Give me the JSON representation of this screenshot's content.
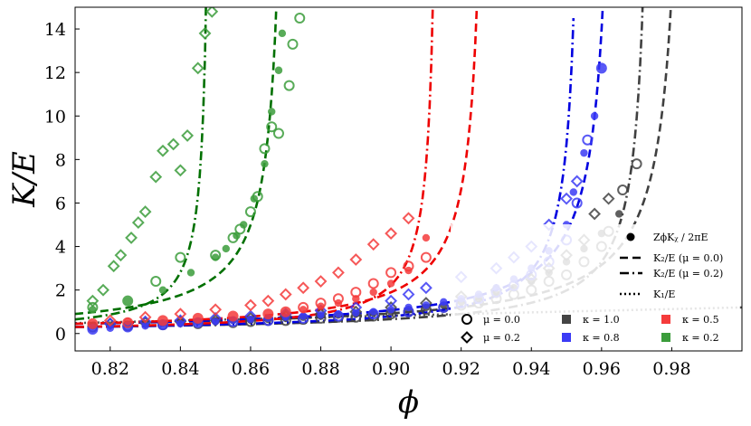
{
  "chart_data": {
    "type": "scatter",
    "xlabel": "ϕ",
    "ylabel": "K/E",
    "xlim": [
      0.81,
      1.0
    ],
    "ylim": [
      -0.8,
      15
    ],
    "x_ticks": [
      "0.82",
      "0.84",
      "0.86",
      "0.88",
      "0.90",
      "0.92",
      "0.94",
      "0.96",
      "0.98"
    ],
    "y_ticks": [
      "0",
      "2",
      "4",
      "6",
      "8",
      "10",
      "12",
      "14"
    ],
    "grid": false,
    "legend": {
      "placement": "bottom-right",
      "lines": [
        {
          "label": "ZϕKᵪ / 2πE",
          "style": "filled-circle"
        },
        {
          "label": "K₂/E (μ = 0.0)",
          "style": "dashed"
        },
        {
          "label": "K₂/E (μ = 0.2)",
          "style": "dashdot"
        },
        {
          "label": "K₁/E",
          "style": "dotted"
        }
      ],
      "markers": [
        {
          "label": "μ = 0.0",
          "style": "open-circle"
        },
        {
          "label": "μ = 0.2",
          "style": "open-diamond"
        }
      ],
      "colors": [
        {
          "label": "κ = 1.0",
          "color": "#444444"
        },
        {
          "label": "κ = 0.8",
          "color": "#3b3bf5"
        },
        {
          "label": "κ = 0.5",
          "color": "#f53b3b"
        },
        {
          "label": "κ = 0.2",
          "color": "#3b9c3b"
        }
      ]
    },
    "groups": [
      {
        "kappa": "1.0",
        "color": "#444444",
        "curve_color": "#404040",
        "K2_mu0": {
          "y0": 0.45,
          "phi_c": 0.985
        },
        "K2_mu02": {
          "y0": 0.3,
          "phi_c": 0.975
        },
        "filled": [
          [
            0.815,
            0.35
          ],
          [
            0.82,
            0.38
          ],
          [
            0.825,
            0.42
          ],
          [
            0.83,
            0.45
          ],
          [
            0.835,
            0.47
          ],
          [
            0.84,
            0.5
          ],
          [
            0.845,
            0.55
          ],
          [
            0.85,
            0.57
          ],
          [
            0.855,
            0.6
          ],
          [
            0.86,
            0.62
          ],
          [
            0.865,
            0.65
          ],
          [
            0.87,
            0.7
          ],
          [
            0.875,
            0.75
          ],
          [
            0.88,
            0.8
          ],
          [
            0.885,
            0.85
          ],
          [
            0.89,
            0.9
          ],
          [
            0.895,
            0.95
          ],
          [
            0.9,
            1.0
          ],
          [
            0.905,
            1.1
          ],
          [
            0.91,
            1.2
          ],
          [
            0.915,
            1.3
          ],
          [
            0.92,
            1.45
          ],
          [
            0.925,
            1.6
          ],
          [
            0.93,
            1.8
          ],
          [
            0.935,
            2.1
          ],
          [
            0.94,
            2.4
          ],
          [
            0.945,
            2.8
          ],
          [
            0.95,
            3.3
          ],
          [
            0.955,
            3.9
          ],
          [
            0.96,
            4.6
          ],
          [
            0.965,
            5.5
          ]
        ],
        "open_circle": [
          [
            0.815,
            0.3
          ],
          [
            0.825,
            0.35
          ],
          [
            0.835,
            0.4
          ],
          [
            0.845,
            0.45
          ],
          [
            0.855,
            0.5
          ],
          [
            0.86,
            0.55
          ],
          [
            0.865,
            0.6
          ],
          [
            0.87,
            0.6
          ],
          [
            0.875,
            0.65
          ],
          [
            0.88,
            0.7
          ],
          [
            0.885,
            0.75
          ],
          [
            0.89,
            0.75
          ],
          [
            0.895,
            0.8
          ],
          [
            0.9,
            0.9
          ],
          [
            0.905,
            1.0
          ],
          [
            0.91,
            1.1
          ],
          [
            0.915,
            1.2
          ],
          [
            0.92,
            1.3
          ],
          [
            0.925,
            1.4
          ],
          [
            0.93,
            1.6
          ],
          [
            0.935,
            1.8
          ],
          [
            0.94,
            2.0
          ],
          [
            0.945,
            2.4
          ],
          [
            0.95,
            2.7
          ],
          [
            0.955,
            3.3
          ],
          [
            0.96,
            4.0
          ],
          [
            0.962,
            4.7
          ],
          [
            0.966,
            6.6
          ],
          [
            0.97,
            7.8
          ]
        ],
        "open_diamond": [
          [
            0.82,
            0.45
          ],
          [
            0.83,
            0.5
          ],
          [
            0.84,
            0.55
          ],
          [
            0.85,
            0.6
          ],
          [
            0.86,
            0.7
          ],
          [
            0.87,
            0.8
          ],
          [
            0.88,
            0.9
          ],
          [
            0.89,
            1.0
          ],
          [
            0.9,
            1.2
          ],
          [
            0.91,
            1.4
          ],
          [
            0.92,
            1.7
          ],
          [
            0.93,
            2.0
          ],
          [
            0.94,
            2.5
          ],
          [
            0.945,
            3.0
          ],
          [
            0.95,
            3.6
          ],
          [
            0.955,
            4.3
          ],
          [
            0.958,
            5.5
          ],
          [
            0.962,
            6.2
          ]
        ]
      },
      {
        "kappa": "0.8",
        "color": "#3b3bf5",
        "curve_color": "#0000e0",
        "K2_mu0": {
          "y0": 0.45,
          "phi_c": 0.965
        },
        "K2_mu02": {
          "y0": 0.3,
          "phi_c": 0.955
        },
        "filled": [
          [
            0.815,
            0.2
          ],
          [
            0.82,
            0.25
          ],
          [
            0.825,
            0.3
          ],
          [
            0.83,
            0.35
          ],
          [
            0.835,
            0.4
          ],
          [
            0.84,
            0.45
          ],
          [
            0.845,
            0.5
          ],
          [
            0.85,
            0.55
          ],
          [
            0.855,
            0.6
          ],
          [
            0.86,
            0.65
          ],
          [
            0.865,
            0.7
          ],
          [
            0.87,
            0.75
          ],
          [
            0.875,
            0.8
          ],
          [
            0.88,
            0.85
          ],
          [
            0.885,
            0.9
          ],
          [
            0.89,
            0.95
          ],
          [
            0.895,
            1.0
          ],
          [
            0.9,
            1.1
          ],
          [
            0.905,
            1.2
          ],
          [
            0.91,
            1.3
          ],
          [
            0.915,
            1.45
          ],
          [
            0.92,
            1.6
          ],
          [
            0.925,
            1.8
          ],
          [
            0.93,
            2.1
          ],
          [
            0.935,
            2.5
          ],
          [
            0.94,
            3.0
          ],
          [
            0.945,
            3.8
          ],
          [
            0.95,
            5.0
          ],
          [
            0.952,
            6.5
          ],
          [
            0.955,
            8.3
          ],
          [
            0.958,
            10.0
          ],
          [
            0.96,
            12.2
          ]
        ],
        "open_circle": [
          [
            0.815,
            0.2
          ],
          [
            0.825,
            0.3
          ],
          [
            0.835,
            0.4
          ],
          [
            0.845,
            0.5
          ],
          [
            0.855,
            0.55
          ],
          [
            0.865,
            0.6
          ],
          [
            0.875,
            0.7
          ],
          [
            0.885,
            0.8
          ],
          [
            0.895,
            0.9
          ],
          [
            0.905,
            1.0
          ],
          [
            0.915,
            1.2
          ],
          [
            0.92,
            1.4
          ],
          [
            0.925,
            1.6
          ],
          [
            0.93,
            1.9
          ],
          [
            0.935,
            2.2
          ],
          [
            0.94,
            2.7
          ],
          [
            0.945,
            3.3
          ],
          [
            0.95,
            4.3
          ],
          [
            0.953,
            6.0
          ],
          [
            0.956,
            8.9
          ],
          [
            0.96,
            12.2
          ]
        ],
        "open_diamond": [
          [
            0.82,
            0.45
          ],
          [
            0.83,
            0.55
          ],
          [
            0.84,
            0.6
          ],
          [
            0.85,
            0.7
          ],
          [
            0.86,
            0.8
          ],
          [
            0.87,
            0.9
          ],
          [
            0.88,
            1.05
          ],
          [
            0.89,
            1.2
          ],
          [
            0.9,
            1.5
          ],
          [
            0.905,
            1.8
          ],
          [
            0.91,
            2.1
          ],
          [
            0.92,
            2.6
          ],
          [
            0.93,
            3.0
          ],
          [
            0.935,
            3.5
          ],
          [
            0.94,
            4.0
          ],
          [
            0.945,
            5.0
          ],
          [
            0.95,
            6.2
          ],
          [
            0.953,
            7.0
          ]
        ]
      },
      {
        "kappa": "0.5",
        "color": "#f53b3b",
        "curve_color": "#ee0000",
        "K2_mu0": {
          "y0": 0.45,
          "phi_c": 0.928
        },
        "K2_mu02": {
          "y0": 0.3,
          "phi_c": 0.914
        },
        "filled": [
          [
            0.815,
            0.45
          ],
          [
            0.825,
            0.55
          ],
          [
            0.835,
            0.6
          ],
          [
            0.845,
            0.7
          ],
          [
            0.855,
            0.8
          ],
          [
            0.865,
            0.9
          ],
          [
            0.87,
            1.0
          ],
          [
            0.875,
            1.1
          ],
          [
            0.88,
            1.25
          ],
          [
            0.885,
            1.4
          ],
          [
            0.89,
            1.6
          ],
          [
            0.895,
            1.9
          ],
          [
            0.9,
            2.3
          ],
          [
            0.905,
            2.9
          ],
          [
            0.91,
            4.4
          ]
        ],
        "open_circle": [
          [
            0.815,
            0.45
          ],
          [
            0.825,
            0.5
          ],
          [
            0.835,
            0.6
          ],
          [
            0.845,
            0.7
          ],
          [
            0.855,
            0.8
          ],
          [
            0.865,
            0.9
          ],
          [
            0.87,
            1.0
          ],
          [
            0.875,
            1.2
          ],
          [
            0.88,
            1.4
          ],
          [
            0.885,
            1.6
          ],
          [
            0.89,
            1.9
          ],
          [
            0.895,
            2.3
          ],
          [
            0.9,
            2.8
          ],
          [
            0.905,
            3.1
          ],
          [
            0.91,
            3.5
          ]
        ],
        "open_diamond": [
          [
            0.82,
            0.6
          ],
          [
            0.83,
            0.75
          ],
          [
            0.84,
            0.9
          ],
          [
            0.85,
            1.1
          ],
          [
            0.86,
            1.3
          ],
          [
            0.865,
            1.5
          ],
          [
            0.87,
            1.8
          ],
          [
            0.875,
            2.1
          ],
          [
            0.88,
            2.4
          ],
          [
            0.885,
            2.8
          ],
          [
            0.89,
            3.4
          ],
          [
            0.895,
            4.1
          ],
          [
            0.9,
            4.6
          ],
          [
            0.905,
            5.3
          ]
        ]
      },
      {
        "kappa": "0.2",
        "color": "#3b9c3b",
        "curve_color": "#007000",
        "K2_mu0": {
          "y0": 0.9,
          "phi_c": 0.871
        },
        "K2_mu02": {
          "y0": 0.65,
          "phi_c": 0.849
        },
        "filled": [
          [
            0.815,
            1.1
          ],
          [
            0.825,
            1.5
          ],
          [
            0.835,
            2.0
          ],
          [
            0.843,
            2.8
          ],
          [
            0.85,
            3.5
          ],
          [
            0.853,
            3.9
          ],
          [
            0.856,
            4.5
          ],
          [
            0.858,
            5.0
          ],
          [
            0.861,
            6.2
          ],
          [
            0.864,
            7.8
          ],
          [
            0.866,
            10.2
          ],
          [
            0.868,
            12.1
          ],
          [
            0.869,
            13.8
          ]
        ],
        "open_circle": [
          [
            0.815,
            1.2
          ],
          [
            0.825,
            1.5
          ],
          [
            0.833,
            2.4
          ],
          [
            0.84,
            3.5
          ],
          [
            0.85,
            3.6
          ],
          [
            0.855,
            4.4
          ],
          [
            0.857,
            4.8
          ],
          [
            0.86,
            5.6
          ],
          [
            0.862,
            6.3
          ],
          [
            0.864,
            8.5
          ],
          [
            0.866,
            9.5
          ],
          [
            0.868,
            9.2
          ],
          [
            0.871,
            11.4
          ],
          [
            0.872,
            13.3
          ],
          [
            0.874,
            14.5
          ]
        ],
        "open_diamond": [
          [
            0.815,
            1.5
          ],
          [
            0.818,
            2.0
          ],
          [
            0.821,
            3.1
          ],
          [
            0.823,
            3.6
          ],
          [
            0.826,
            4.4
          ],
          [
            0.828,
            5.1
          ],
          [
            0.83,
            5.6
          ],
          [
            0.833,
            7.2
          ],
          [
            0.835,
            8.4
          ],
          [
            0.838,
            8.7
          ],
          [
            0.84,
            7.5
          ],
          [
            0.842,
            9.1
          ],
          [
            0.845,
            12.2
          ],
          [
            0.847,
            13.8
          ],
          [
            0.849,
            14.8
          ]
        ]
      }
    ]
  }
}
